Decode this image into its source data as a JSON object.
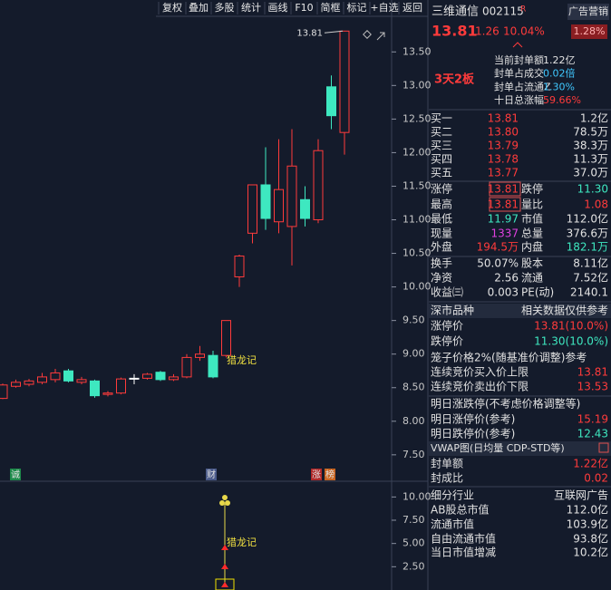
{
  "toolbar": [
    "复权",
    "叠加",
    "多股",
    "统计",
    "画线",
    "F10",
    "简框",
    "标记",
    "+自选",
    "返回"
  ],
  "header": {
    "name": "三维通信",
    "code": "002115",
    "flag": "R",
    "sector": "广告营销"
  },
  "quote": {
    "price": "13.81",
    "change": "1.26",
    "percent": "10.04%",
    "sector_change": "1.28%"
  },
  "seal": {
    "tag": "3天2板",
    "rows": [
      [
        "当前封单额",
        "1.22亿"
      ],
      [
        "封单占成交",
        "0.02倍"
      ],
      [
        "封单占流通Z",
        "1.30%"
      ],
      [
        "十日总涨幅",
        "59.66%"
      ]
    ]
  },
  "order_book": [
    [
      "买一",
      "13.81",
      "1.2亿"
    ],
    [
      "买二",
      "13.80",
      "78.5万"
    ],
    [
      "买三",
      "13.79",
      "38.3万"
    ],
    [
      "买四",
      "13.78",
      "11.3万"
    ],
    [
      "买五",
      "13.77",
      "37.0万"
    ]
  ],
  "stats": [
    [
      "涨停",
      "13.81",
      "跌停",
      "11.30"
    ],
    [
      "最高",
      "13.81",
      "量比",
      "1.08"
    ],
    [
      "最低",
      "11.97",
      "市值",
      "112.0亿"
    ],
    [
      "现量",
      "1337",
      "总量",
      "376.6万"
    ],
    [
      "外盘",
      "194.5万",
      "内盘",
      "182.1万"
    ],
    [
      "换手",
      "50.07%",
      "股本",
      "8.11亿"
    ],
    [
      "净资",
      "2.56",
      "流通",
      "7.52亿"
    ],
    [
      "收益㈢",
      "0.003",
      "PE(动)",
      "2140.1"
    ]
  ],
  "limits": {
    "header": [
      "深市品种",
      "相关数据仅供参考"
    ],
    "rows": [
      [
        "涨停价",
        "13.81(10.0%)"
      ],
      [
        "跌停价",
        "11.30(10.0%)"
      ]
    ]
  },
  "cage": {
    "title": "笼子价格2%(随基准价调整)参考",
    "rows": [
      [
        "连续竞价买入价上限",
        "13.81"
      ],
      [
        "连续竞价卖出价下限",
        "13.53"
      ]
    ]
  },
  "tomorrow": {
    "title": "明日涨跌停(不考虑价格调整等)",
    "rows": [
      [
        "明日涨停价(参考)",
        "15.19"
      ],
      [
        "明日跌停价(参考)",
        "12.43"
      ]
    ]
  },
  "vwap": {
    "title": "VWAP图(日均量 CDP-STD等)",
    "rows": [
      [
        "封单额",
        "1.22亿"
      ],
      [
        "封成比",
        "0.02"
      ]
    ]
  },
  "industry": [
    [
      "细分行业",
      "互联网广告"
    ],
    [
      "AB股总市值",
      "112.0亿"
    ],
    [
      "流通市值",
      "103.9亿"
    ],
    [
      "自由流通市值",
      "93.8亿"
    ],
    [
      "当日市值增减",
      "10.2亿"
    ]
  ],
  "chart_data": [
    {
      "type": "candlestick",
      "up_color": "#ff3b3b",
      "down_color": "#3ee8c0",
      "ylim": [
        7.12,
        14.03
      ],
      "yticks": [
        {
          "value": 7.5,
          "label": "7.50"
        },
        {
          "value": 8,
          "label": "8.00"
        },
        {
          "value": 8.5,
          "label": "8.50"
        },
        {
          "value": 9,
          "label": "9.00"
        },
        {
          "value": 9.5,
          "label": "9.50"
        },
        {
          "value": 10,
          "label": "10.00"
        },
        {
          "value": 10.5,
          "label": "10.50"
        },
        {
          "value": 11,
          "label": "11.00"
        },
        {
          "value": 11.5,
          "label": "11.50"
        },
        {
          "value": 12,
          "label": "12.00"
        },
        {
          "value": 12.5,
          "label": "12.50"
        },
        {
          "value": 13,
          "label": "13.00"
        },
        {
          "value": 13.5,
          "label": "13.50"
        }
      ],
      "high_label": "13.81",
      "signal": "猎龙记",
      "events": [
        "诚",
        "财",
        "涨",
        "榜"
      ],
      "candles": [
        {
          "open": 8.34,
          "high": 8.56,
          "low": 8.33,
          "close": 8.54
        },
        {
          "open": 8.52,
          "high": 8.62,
          "low": 8.5,
          "close": 8.58
        },
        {
          "open": 8.55,
          "high": 8.63,
          "low": 8.52,
          "close": 8.6
        },
        {
          "open": 8.58,
          "high": 8.72,
          "low": 8.55,
          "close": 8.66
        },
        {
          "open": 8.62,
          "high": 8.78,
          "low": 8.58,
          "close": 8.72
        },
        {
          "open": 8.75,
          "high": 8.78,
          "low": 8.58,
          "close": 8.6
        },
        {
          "open": 8.58,
          "high": 8.66,
          "low": 8.55,
          "close": 8.62
        },
        {
          "open": 8.6,
          "high": 8.62,
          "low": 8.35,
          "close": 8.38
        },
        {
          "open": 8.4,
          "high": 8.45,
          "low": 8.37,
          "close": 8.42
        },
        {
          "open": 8.42,
          "high": 8.65,
          "low": 8.4,
          "close": 8.63
        },
        {
          "open": 8.64,
          "high": 8.7,
          "low": 8.55,
          "close": 8.64
        },
        {
          "open": 8.64,
          "high": 8.72,
          "low": 8.62,
          "close": 8.7
        },
        {
          "open": 8.73,
          "high": 8.75,
          "low": 8.6,
          "close": 8.62
        },
        {
          "open": 8.62,
          "high": 8.7,
          "low": 8.6,
          "close": 8.66
        },
        {
          "open": 8.66,
          "high": 9.0,
          "low": 8.64,
          "close": 8.95
        },
        {
          "open": 8.95,
          "high": 9.12,
          "low": 8.9,
          "close": 9.0
        },
        {
          "open": 8.98,
          "high": 9.05,
          "low": 8.64,
          "close": 8.66
        },
        {
          "open": 8.98,
          "high": 9.5,
          "low": 8.95,
          "close": 9.5
        },
        {
          "open": 10.15,
          "high": 10.48,
          "low": 10.0,
          "close": 10.46
        },
        {
          "open": 10.8,
          "high": 11.52,
          "low": 10.65,
          "close": 11.52
        },
        {
          "open": 11.52,
          "high": 12.08,
          "low": 10.85,
          "close": 11.02
        },
        {
          "open": 10.97,
          "high": 12.2,
          "low": 10.8,
          "close": 11.45
        },
        {
          "open": 10.9,
          "high": 12.35,
          "low": 10.32,
          "close": 11.8
        },
        {
          "open": 11.3,
          "high": 11.5,
          "low": 10.9,
          "close": 11.02
        },
        {
          "open": 11.0,
          "high": 12.2,
          "low": 10.95,
          "close": 12.03
        },
        {
          "open": 12.98,
          "high": 13.15,
          "low": 12.35,
          "close": 12.55
        },
        {
          "open": 12.3,
          "high": 13.81,
          "low": 11.97,
          "close": 13.81
        }
      ]
    },
    {
      "type": "indicator",
      "signal": "猎龙记",
      "ylim": [
        0,
        11.3
      ],
      "yticks": [
        {
          "value": 2.5,
          "label": "2.50"
        },
        {
          "value": 5,
          "label": "5.00"
        },
        {
          "value": 7.5,
          "label": "7.50"
        },
        {
          "value": 10,
          "label": "10.00"
        }
      ]
    }
  ]
}
